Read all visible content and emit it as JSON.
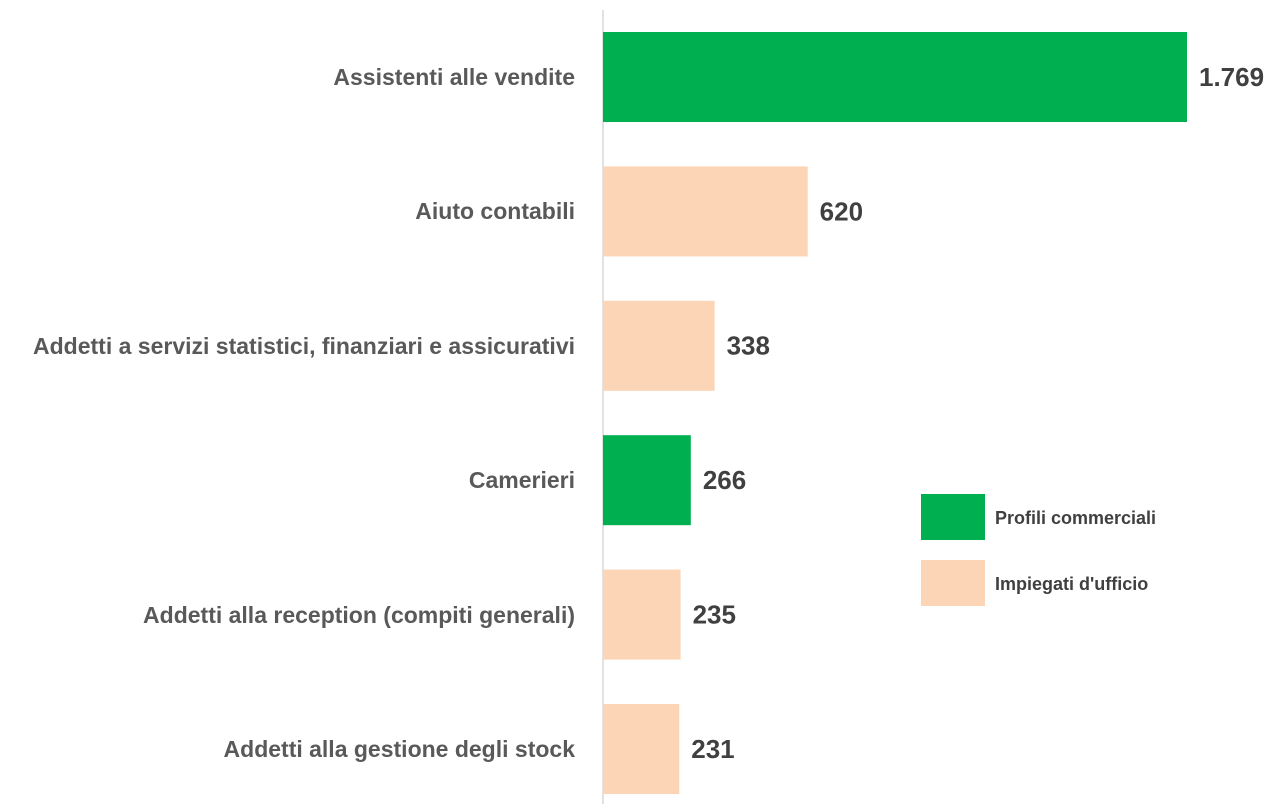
{
  "chart_data": {
    "type": "barh",
    "categories": [
      "Assistenti alle vendite",
      "Aiuto contabili",
      "Addetti a servizi statistici, finanziari e assicurativi",
      "Camerieri",
      "Addetti alla reception (compiti generali)",
      "Addetti alla gestione degli stock"
    ],
    "series": [
      {
        "name": "Profili commerciali",
        "color": "#00b050",
        "values": [
          1769,
          null,
          null,
          266,
          null,
          null
        ],
        "value_labels": [
          "1.769",
          null,
          null,
          "266",
          null,
          null
        ]
      },
      {
        "name": "Impiegati d'ufficio",
        "color": "#fbd5b5",
        "values": [
          null,
          620,
          338,
          null,
          235,
          231
        ],
        "value_labels": [
          null,
          "620",
          "338",
          null,
          "235",
          "231"
        ]
      }
    ],
    "legend": "right"
  }
}
